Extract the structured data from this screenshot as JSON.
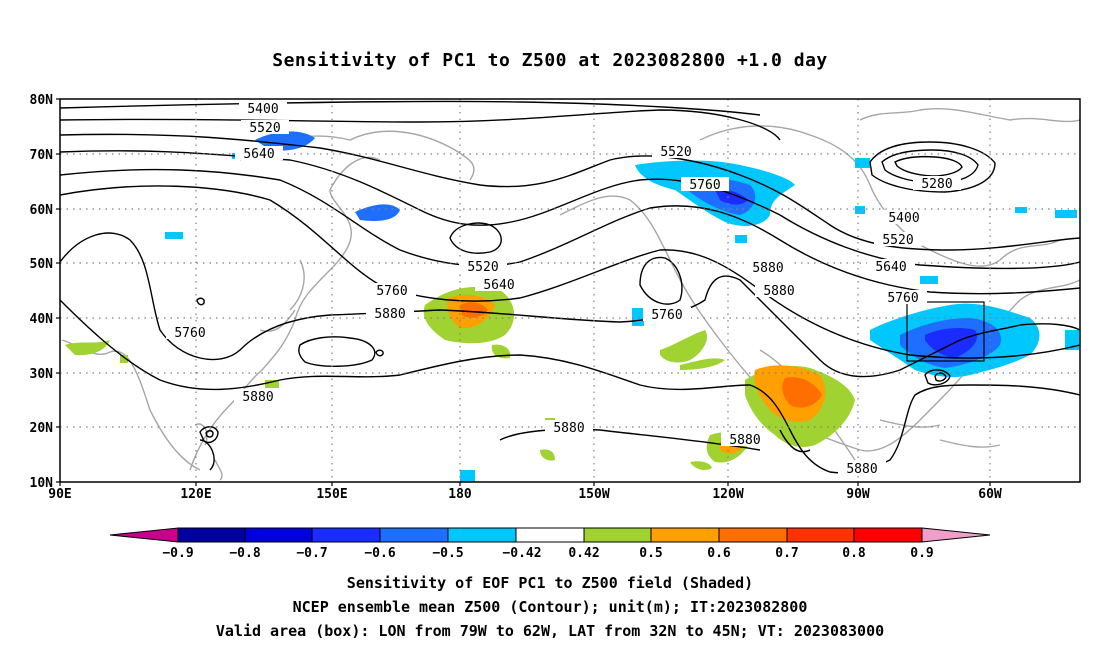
{
  "title": "Sensitivity of PC1 to Z500 at 2023082800 +1.0 day",
  "map": {
    "lat_labels": [
      "80N",
      "70N",
      "60N",
      "50N",
      "40N",
      "30N",
      "20N",
      "10N"
    ],
    "lon_labels": [
      "90E",
      "120E",
      "150E",
      "180",
      "150W",
      "120W",
      "90W",
      "60W"
    ],
    "contour_labels": [
      "5400",
      "5520",
      "5640",
      "5520",
      "5760",
      "5280",
      "5400",
      "5520",
      "5640",
      "5760",
      "5520",
      "5640",
      "5760",
      "5880",
      "5760",
      "5880",
      "5880",
      "5880",
      "5880",
      "5760",
      "5880",
      "5880",
      "5880"
    ],
    "box": {
      "lon_west": "79W",
      "lon_east": "62W",
      "lat_south": "32N",
      "lat_north": "45N"
    },
    "colors": {
      "neg_0.9": "#00009e",
      "neg_0.8": "#0000dc",
      "neg_0.7": "#1a2cff",
      "neg_0.6": "#1e6eff",
      "neg_0.5": "#00c8ff",
      "neutral": "#ffffff",
      "pos_0.5": "#a0d232",
      "pos_0.6": "#ffa000",
      "pos_0.7": "#ff6e00",
      "pos_0.8": "#ff3200",
      "pos_0.9": "#ff0000",
      "under": "#c8008c",
      "over": "#f0a0c8"
    }
  },
  "colorbar": {
    "labels": [
      "−0.9",
      "−0.8",
      "−0.7",
      "−0.6",
      "−0.5",
      "−0.42",
      "0.42",
      "0.5",
      "0.6",
      "0.7",
      "0.8",
      "0.9"
    ]
  },
  "footer": {
    "line1": "Sensitivity of EOF PC1 to Z500 field (Shaded)",
    "line2": "NCEP ensemble mean Z500 (Contour); unit(m); IT:2023082800",
    "line3": "Valid area (box): LON from 79W to 62W, LAT from 32N to 45N; VT: 2023083000"
  }
}
